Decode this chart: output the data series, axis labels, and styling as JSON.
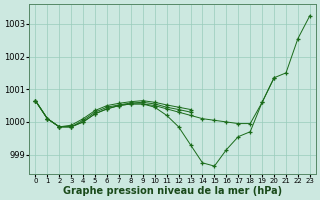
{
  "background_color": "#cce8e0",
  "grid_color": "#99ccbb",
  "line_color": "#1a6b1a",
  "marker_color": "#1a6b1a",
  "xlabel": "Graphe pression niveau de la mer (hPa)",
  "xlabel_fontsize": 7,
  "yticks": [
    999,
    1000,
    1001,
    1002,
    1003
  ],
  "xtick_labels": [
    "0",
    "1",
    "2",
    "3",
    "4",
    "5",
    "6",
    "7",
    "8",
    "9",
    "10",
    "11",
    "12",
    "13",
    "14",
    "15",
    "16",
    "17",
    "18",
    "19",
    "20",
    "21",
    "22",
    "23"
  ],
  "ylim": [
    998.4,
    1003.6
  ],
  "xlim": [
    -0.5,
    23.5
  ],
  "series": [
    [
      1000.65,
      1000.1,
      999.85,
      999.85,
      1000.0,
      1000.25,
      1000.4,
      1000.5,
      1000.55,
      1000.55,
      1000.5,
      1000.4,
      1000.3,
      1000.2,
      1000.1,
      1000.05,
      1000.0,
      999.95,
      999.95,
      1000.6,
      1001.35,
      1001.5,
      1002.55,
      1003.25
    ],
    [
      1000.65,
      1000.1,
      999.85,
      999.85,
      1000.0,
      1000.25,
      1000.4,
      1000.5,
      1000.55,
      1000.55,
      1000.45,
      1000.2,
      999.85,
      999.3,
      998.75,
      998.65,
      999.15,
      999.55,
      999.7,
      1000.6,
      1001.35,
      null,
      null,
      null
    ],
    [
      1000.65,
      1000.1,
      999.85,
      999.85,
      1000.05,
      1000.3,
      1000.45,
      1000.52,
      1000.58,
      1000.6,
      1000.55,
      1000.45,
      1000.38,
      1000.3,
      null,
      null,
      null,
      null,
      null,
      null,
      null,
      null,
      null,
      null
    ],
    [
      1000.65,
      1000.1,
      999.85,
      999.9,
      1000.1,
      1000.35,
      1000.5,
      1000.57,
      1000.62,
      1000.65,
      1000.6,
      1000.52,
      1000.45,
      1000.38,
      null,
      null,
      null,
      null,
      null,
      null,
      null,
      null,
      null,
      null
    ]
  ]
}
